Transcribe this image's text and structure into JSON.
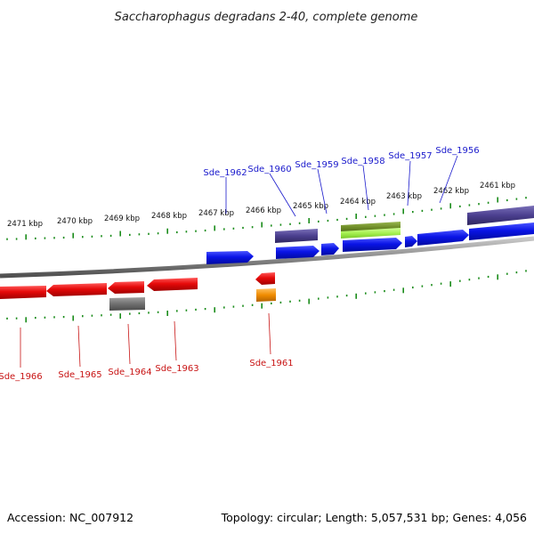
{
  "header": {
    "title": "Saccharophagus degradans 2-40, complete genome"
  },
  "footer": {
    "accession": "Accession: NC_007912",
    "summary": "Topology: circular; Length: 5,057,531 bp; Genes: 4,056"
  },
  "scale_labels": [
    "2471 kbp",
    "2470 kbp",
    "2469 kbp",
    "2468 kbp",
    "2467 kbp",
    "2466 kbp",
    "2465 kbp",
    "2464 kbp",
    "2463 kbp",
    "2462 kbp",
    "2461 kbp"
  ],
  "gene_labels_top": [
    "Sde_1962",
    "Sde_1960",
    "Sde_1959",
    "Sde_1958",
    "Sde_1957",
    "Sde_1956"
  ],
  "gene_labels_bottom": [
    "Sde_1966",
    "Sde_1965",
    "Sde_1964",
    "Sde_1963",
    "Sde_1961"
  ],
  "colors": {
    "forward_gene": "#0a14e6",
    "reverse_gene": "#e60a0a",
    "other_feature_top": "#4b3f8f",
    "other_feature_bottom": "#707070",
    "green_feature": "#6e8c28",
    "lime_feature": "#a6f050",
    "orange_feature": "#f08c00",
    "backbone": "#8c8c8c",
    "ticks": "#1a8c1a"
  }
}
